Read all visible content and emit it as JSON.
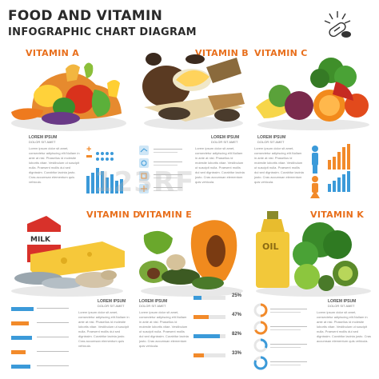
{
  "header": {
    "title_line1": "FOOD AND VITAMIN",
    "title_line2": "INFOGRAPHIC CHART DIAGRAM"
  },
  "vitamins": [
    {
      "name": "VITAMIN A"
    },
    {
      "name": "VITAMIN B"
    },
    {
      "name": "VITAMIN C"
    },
    {
      "name": "VITAMIN D"
    },
    {
      "name": "VITAMIN E"
    },
    {
      "name": "VITAMIN K"
    }
  ],
  "food_labels": {
    "milk": "MILK",
    "oil": "OIL"
  },
  "lorem": {
    "title": "LOREM IPSUM",
    "sub": "DOLOR SIT AMET",
    "body": "Lorem ipsum dolor sit amet, consectetur adipiscing elit.Nullam in ante at nisl. Phasellus id molestie lobortis vitae. Vestibulum ut suscipit nulla. Praesent mollis dui sed dignissim. Curabitur lacinia justo. Cras accumsan elementum quis vehicula.",
    "watermark": "123RF"
  },
  "percentages": [
    "25%",
    "47%",
    "82%",
    "33%"
  ],
  "colors": {
    "accent": "#e86f1c",
    "blue": "#3b9ad9",
    "orange": "#f28a2a"
  }
}
